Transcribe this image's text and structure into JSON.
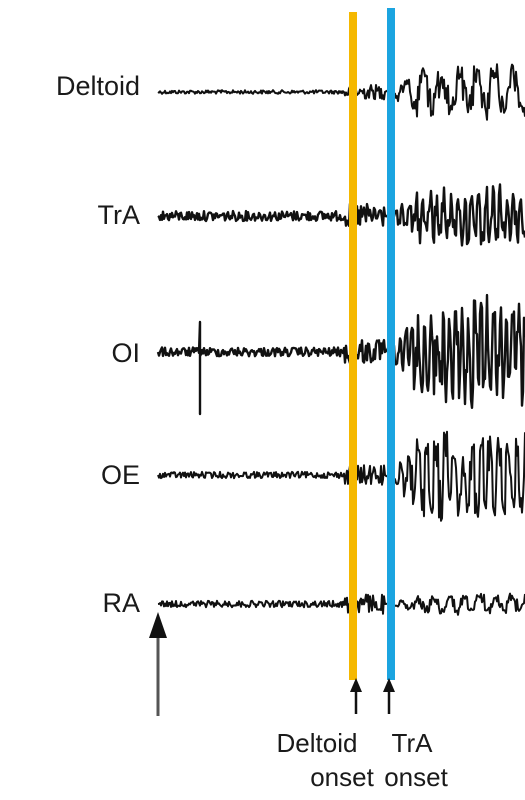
{
  "traces": [
    {
      "label": "Deltoid"
    },
    {
      "label": "TrA"
    },
    {
      "label": "OI"
    },
    {
      "label": "OE"
    },
    {
      "label": "RA"
    }
  ],
  "markers": [
    {
      "line1": "Deltoid",
      "line2": "onset",
      "color": "#f5b800"
    },
    {
      "line1": "TrA",
      "line2": "onset",
      "color": "#1ba4e0"
    }
  ],
  "trace_color": "#111111"
}
